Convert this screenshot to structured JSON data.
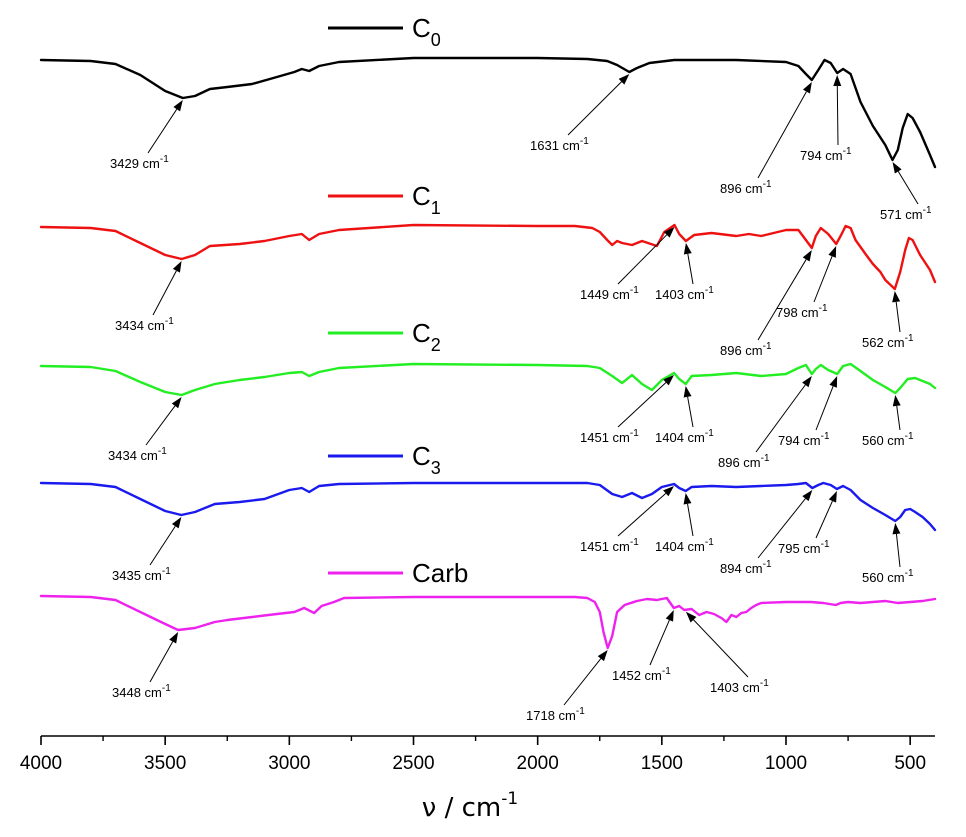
{
  "chart_data": {
    "type": "line",
    "title": "",
    "xlabel": "ν / cm",
    "xlabel_sup": "-1",
    "ylabel": "",
    "xlim": [
      4000,
      400
    ],
    "x_reversed": true,
    "grid": false,
    "legend_placement": "inline-above-each-trace",
    "x_ticks": [
      4000,
      3500,
      3000,
      2500,
      2000,
      1500,
      1000,
      500
    ],
    "series": [
      {
        "name": "C",
        "name_sub": "0",
        "color": "#000000",
        "points": [
          [
            4000,
            60
          ],
          [
            3800,
            61
          ],
          [
            3700,
            64
          ],
          [
            3600,
            75
          ],
          [
            3500,
            91
          ],
          [
            3429,
            98
          ],
          [
            3380,
            96
          ],
          [
            3320,
            89
          ],
          [
            3250,
            87
          ],
          [
            3150,
            84
          ],
          [
            3050,
            77
          ],
          [
            2980,
            72
          ],
          [
            2950,
            69
          ],
          [
            2920,
            71
          ],
          [
            2880,
            66
          ],
          [
            2800,
            62
          ],
          [
            2500,
            58
          ],
          [
            2000,
            58
          ],
          [
            1800,
            59
          ],
          [
            1720,
            61
          ],
          [
            1680,
            65
          ],
          [
            1631,
            72
          ],
          [
            1600,
            68
          ],
          [
            1550,
            63
          ],
          [
            1450,
            60
          ],
          [
            1200,
            60
          ],
          [
            1000,
            62
          ],
          [
            950,
            66
          ],
          [
            920,
            74
          ],
          [
            896,
            80
          ],
          [
            870,
            70
          ],
          [
            845,
            60
          ],
          [
            820,
            63
          ],
          [
            794,
            73
          ],
          [
            770,
            69
          ],
          [
            740,
            74
          ],
          [
            700,
            102
          ],
          [
            650,
            126
          ],
          [
            600,
            145
          ],
          [
            571,
            160
          ],
          [
            550,
            150
          ],
          [
            530,
            128
          ],
          [
            510,
            114
          ],
          [
            490,
            118
          ],
          [
            460,
            132
          ],
          [
            420,
            155
          ],
          [
            400,
            167
          ]
        ]
      },
      {
        "name": "C",
        "name_sub": "1",
        "color": "#ee1111",
        "points": [
          [
            4000,
            227
          ],
          [
            3800,
            228
          ],
          [
            3700,
            231
          ],
          [
            3600,
            243
          ],
          [
            3500,
            255
          ],
          [
            3434,
            259
          ],
          [
            3380,
            255
          ],
          [
            3320,
            246
          ],
          [
            3200,
            244
          ],
          [
            3100,
            241
          ],
          [
            3000,
            236
          ],
          [
            2950,
            234
          ],
          [
            2920,
            240
          ],
          [
            2880,
            234
          ],
          [
            2800,
            230
          ],
          [
            2500,
            225
          ],
          [
            2000,
            226
          ],
          [
            1850,
            226
          ],
          [
            1780,
            228
          ],
          [
            1750,
            232
          ],
          [
            1720,
            240
          ],
          [
            1700,
            245
          ],
          [
            1680,
            241
          ],
          [
            1660,
            243
          ],
          [
            1620,
            245
          ],
          [
            1580,
            241
          ],
          [
            1520,
            246
          ],
          [
            1490,
            232
          ],
          [
            1449,
            225
          ],
          [
            1430,
            234
          ],
          [
            1403,
            241
          ],
          [
            1370,
            235
          ],
          [
            1300,
            233
          ],
          [
            1200,
            236
          ],
          [
            1150,
            234
          ],
          [
            1100,
            236
          ],
          [
            1000,
            230
          ],
          [
            950,
            230
          ],
          [
            920,
            240
          ],
          [
            896,
            248
          ],
          [
            880,
            236
          ],
          [
            860,
            228
          ],
          [
            830,
            234
          ],
          [
            798,
            244
          ],
          [
            780,
            236
          ],
          [
            760,
            226
          ],
          [
            740,
            228
          ],
          [
            720,
            240
          ],
          [
            680,
            254
          ],
          [
            650,
            264
          ],
          [
            620,
            272
          ],
          [
            600,
            280
          ],
          [
            562,
            289
          ],
          [
            540,
            272
          ],
          [
            520,
            250
          ],
          [
            505,
            238
          ],
          [
            490,
            240
          ],
          [
            460,
            255
          ],
          [
            420,
            270
          ],
          [
            400,
            282
          ]
        ]
      },
      {
        "name": "C",
        "name_sub": "2",
        "color": "#22ee22",
        "points": [
          [
            4000,
            366
          ],
          [
            3800,
            367
          ],
          [
            3700,
            371
          ],
          [
            3600,
            382
          ],
          [
            3500,
            392
          ],
          [
            3434,
            395
          ],
          [
            3380,
            390
          ],
          [
            3300,
            384
          ],
          [
            3200,
            380
          ],
          [
            3100,
            377
          ],
          [
            3000,
            373
          ],
          [
            2950,
            372
          ],
          [
            2920,
            376
          ],
          [
            2880,
            372
          ],
          [
            2800,
            368
          ],
          [
            2500,
            364
          ],
          [
            2000,
            365
          ],
          [
            1800,
            366
          ],
          [
            1750,
            368
          ],
          [
            1700,
            376
          ],
          [
            1660,
            383
          ],
          [
            1620,
            375
          ],
          [
            1580,
            384
          ],
          [
            1540,
            390
          ],
          [
            1500,
            380
          ],
          [
            1451,
            373
          ],
          [
            1430,
            379
          ],
          [
            1404,
            384
          ],
          [
            1380,
            376
          ],
          [
            1300,
            375
          ],
          [
            1200,
            373
          ],
          [
            1100,
            376
          ],
          [
            1000,
            374
          ],
          [
            950,
            368
          ],
          [
            920,
            365
          ],
          [
            896,
            374
          ],
          [
            880,
            369
          ],
          [
            860,
            365
          ],
          [
            830,
            370
          ],
          [
            794,
            374
          ],
          [
            770,
            366
          ],
          [
            740,
            364
          ],
          [
            700,
            371
          ],
          [
            650,
            380
          ],
          [
            600,
            387
          ],
          [
            560,
            393
          ],
          [
            540,
            388
          ],
          [
            510,
            379
          ],
          [
            480,
            378
          ],
          [
            440,
            382
          ],
          [
            420,
            384
          ],
          [
            400,
            388
          ]
        ]
      },
      {
        "name": "C",
        "name_sub": "3",
        "color": "#1a1aee",
        "points": [
          [
            4000,
            483
          ],
          [
            3800,
            484
          ],
          [
            3700,
            487
          ],
          [
            3600,
            499
          ],
          [
            3500,
            511
          ],
          [
            3435,
            515
          ],
          [
            3380,
            512
          ],
          [
            3300,
            504
          ],
          [
            3200,
            502
          ],
          [
            3100,
            499
          ],
          [
            3000,
            490
          ],
          [
            2950,
            488
          ],
          [
            2920,
            492
          ],
          [
            2880,
            486
          ],
          [
            2800,
            484
          ],
          [
            2500,
            483
          ],
          [
            2000,
            483
          ],
          [
            1800,
            483
          ],
          [
            1750,
            485
          ],
          [
            1700,
            494
          ],
          [
            1660,
            497
          ],
          [
            1620,
            493
          ],
          [
            1580,
            498
          ],
          [
            1540,
            494
          ],
          [
            1500,
            487
          ],
          [
            1451,
            484
          ],
          [
            1430,
            488
          ],
          [
            1404,
            491
          ],
          [
            1380,
            487
          ],
          [
            1300,
            486
          ],
          [
            1200,
            487
          ],
          [
            1100,
            486
          ],
          [
            1000,
            485
          ],
          [
            950,
            484
          ],
          [
            920,
            483
          ],
          [
            894,
            488
          ],
          [
            870,
            485
          ],
          [
            850,
            483
          ],
          [
            820,
            485
          ],
          [
            795,
            489
          ],
          [
            770,
            486
          ],
          [
            740,
            490
          ],
          [
            700,
            500
          ],
          [
            650,
            508
          ],
          [
            600,
            515
          ],
          [
            560,
            521
          ],
          [
            540,
            517
          ],
          [
            520,
            510
          ],
          [
            500,
            509
          ],
          [
            480,
            512
          ],
          [
            450,
            517
          ],
          [
            420,
            524
          ],
          [
            400,
            530
          ]
        ]
      },
      {
        "name": "Carb",
        "name_sub": "",
        "color": "#ee22ee",
        "points": [
          [
            4000,
            596
          ],
          [
            3800,
            597
          ],
          [
            3700,
            600
          ],
          [
            3600,
            612
          ],
          [
            3500,
            624
          ],
          [
            3448,
            630
          ],
          [
            3380,
            628
          ],
          [
            3300,
            622
          ],
          [
            3250,
            620
          ],
          [
            3150,
            617
          ],
          [
            3050,
            614
          ],
          [
            2980,
            612
          ],
          [
            2940,
            608
          ],
          [
            2900,
            613
          ],
          [
            2870,
            606
          ],
          [
            2820,
            602
          ],
          [
            2780,
            598
          ],
          [
            2500,
            597
          ],
          [
            2000,
            597
          ],
          [
            1850,
            597
          ],
          [
            1800,
            598
          ],
          [
            1770,
            602
          ],
          [
            1750,
            612
          ],
          [
            1735,
            632
          ],
          [
            1718,
            648
          ],
          [
            1700,
            636
          ],
          [
            1680,
            612
          ],
          [
            1650,
            605
          ],
          [
            1600,
            601
          ],
          [
            1560,
            599
          ],
          [
            1520,
            600
          ],
          [
            1480,
            598
          ],
          [
            1452,
            608
          ],
          [
            1430,
            606
          ],
          [
            1410,
            610
          ],
          [
            1380,
            609
          ],
          [
            1350,
            615
          ],
          [
            1320,
            612
          ],
          [
            1290,
            614
          ],
          [
            1260,
            618
          ],
          [
            1240,
            622
          ],
          [
            1220,
            615
          ],
          [
            1200,
            617
          ],
          [
            1180,
            613
          ],
          [
            1160,
            612
          ],
          [
            1140,
            608
          ],
          [
            1120,
            605
          ],
          [
            1100,
            603
          ],
          [
            1000,
            602
          ],
          [
            900,
            602
          ],
          [
            850,
            603
          ],
          [
            800,
            605
          ],
          [
            780,
            603
          ],
          [
            750,
            602
          ],
          [
            700,
            603
          ],
          [
            650,
            602
          ],
          [
            600,
            601
          ],
          [
            550,
            603
          ],
          [
            500,
            602
          ],
          [
            450,
            601
          ],
          [
            400,
            599
          ]
        ]
      }
    ],
    "annotations": [
      {
        "label": "3429 cm",
        "sup": "-1",
        "series": 0,
        "x": 3429
      },
      {
        "label": "1631 cm",
        "sup": "-1",
        "series": 0,
        "x": 1631
      },
      {
        "label": "896 cm",
        "sup": "-1",
        "series": 0,
        "x": 896
      },
      {
        "label": "794 cm",
        "sup": "-1",
        "series": 0,
        "x": 794
      },
      {
        "label": "571 cm",
        "sup": "-1",
        "series": 0,
        "x": 571
      },
      {
        "label": "3434 cm",
        "sup": "-1",
        "series": 1,
        "x": 3434
      },
      {
        "label": "1449 cm",
        "sup": "-1",
        "series": 1,
        "x": 1449
      },
      {
        "label": "1403 cm",
        "sup": "-1",
        "series": 1,
        "x": 1403
      },
      {
        "label": "896 cm",
        "sup": "-1",
        "series": 1,
        "x": 896
      },
      {
        "label": "798 cm",
        "sup": "-1",
        "series": 1,
        "x": 798
      },
      {
        "label": "562 cm",
        "sup": "-1",
        "series": 1,
        "x": 562
      },
      {
        "label": "3434 cm",
        "sup": "-1",
        "series": 2,
        "x": 3434
      },
      {
        "label": "1451 cm",
        "sup": "-1",
        "series": 2,
        "x": 1451
      },
      {
        "label": "1404 cm",
        "sup": "-1",
        "series": 2,
        "x": 1404
      },
      {
        "label": "896 cm",
        "sup": "-1",
        "series": 2,
        "x": 896
      },
      {
        "label": "794 cm",
        "sup": "-1",
        "series": 2,
        "x": 794
      },
      {
        "label": "560 cm",
        "sup": "-1",
        "series": 2,
        "x": 560
      },
      {
        "label": "3435 cm",
        "sup": "-1",
        "series": 3,
        "x": 3435
      },
      {
        "label": "1451 cm",
        "sup": "-1",
        "series": 3,
        "x": 1451
      },
      {
        "label": "1404 cm",
        "sup": "-1",
        "series": 3,
        "x": 1404
      },
      {
        "label": "894 cm",
        "sup": "-1",
        "series": 3,
        "x": 894
      },
      {
        "label": "795 cm",
        "sup": "-1",
        "series": 3,
        "x": 795
      },
      {
        "label": "560 cm",
        "sup": "-1",
        "series": 3,
        "x": 560
      },
      {
        "label": "3448 cm",
        "sup": "-1",
        "series": 4,
        "x": 3448
      },
      {
        "label": "1718 cm",
        "sup": "-1",
        "series": 4,
        "x": 1718
      },
      {
        "label": "1452 cm",
        "sup": "-1",
        "series": 4,
        "x": 1452
      },
      {
        "label": "1403 cm",
        "sup": "-1",
        "series": 4,
        "x": 1403
      }
    ]
  }
}
